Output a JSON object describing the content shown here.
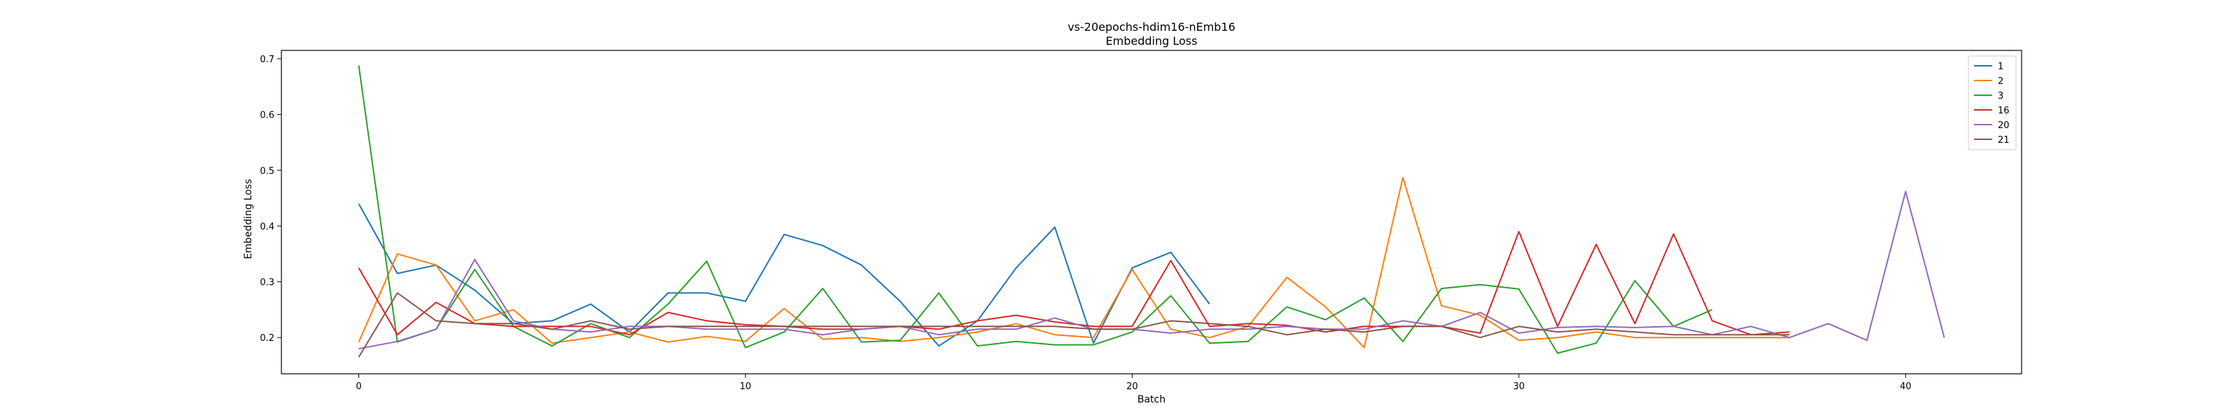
{
  "chart_data": {
    "type": "line",
    "title": "vs-20epochs-hdim16-nEmb16",
    "subtitle": "Embedding Loss",
    "xlabel": "Batch",
    "ylabel": "Embedding Loss",
    "xlim": [
      -2,
      43
    ],
    "ylim": [
      0.135,
      0.715
    ],
    "x_ticks": [
      0,
      10,
      20,
      30,
      40
    ],
    "y_ticks": [
      0.2,
      0.3,
      0.4,
      0.5,
      0.6,
      0.7
    ],
    "grid": false,
    "legend_position": "top-right",
    "series": [
      {
        "name": "1",
        "color": "#1f77b4",
        "values": [
          0.44,
          0.315,
          0.33,
          0.285,
          0.225,
          0.23,
          0.26,
          0.21,
          0.28,
          0.28,
          0.265,
          0.385,
          0.365,
          0.33,
          0.265,
          0.185,
          0.23,
          0.325,
          0.398,
          0.19,
          0.325,
          0.353,
          0.26
        ]
      },
      {
        "name": "2",
        "color": "#ff7f0e",
        "values": [
          0.192,
          0.35,
          0.33,
          0.23,
          0.25,
          0.19,
          0.2,
          0.21,
          0.192,
          0.202,
          0.193,
          0.252,
          0.197,
          0.2,
          0.193,
          0.2,
          0.21,
          0.225,
          0.205,
          0.2,
          0.322,
          0.215,
          0.2,
          0.22,
          0.308,
          0.255,
          0.182,
          0.487,
          0.257,
          0.24,
          0.195,
          0.2,
          0.21,
          0.2,
          0.2,
          0.2,
          0.2,
          0.2
        ]
      },
      {
        "name": "3",
        "color": "#2ca02c",
        "values": [
          0.688,
          0.192,
          0.215,
          0.322,
          0.22,
          0.185,
          0.225,
          0.2,
          0.26,
          0.337,
          0.182,
          0.21,
          0.288,
          0.192,
          0.195,
          0.28,
          0.185,
          0.193,
          0.187,
          0.187,
          0.21,
          0.275,
          0.19,
          0.193,
          0.255,
          0.232,
          0.271,
          0.193,
          0.288,
          0.295,
          0.287,
          0.172,
          0.19,
          0.302,
          0.22,
          0.25
        ]
      },
      {
        "name": "16",
        "color": "#d62728",
        "values": [
          0.325,
          0.205,
          0.263,
          0.225,
          0.22,
          0.22,
          0.22,
          0.205,
          0.245,
          0.23,
          0.223,
          0.22,
          0.215,
          0.215,
          0.22,
          0.215,
          0.23,
          0.24,
          0.228,
          0.22,
          0.22,
          0.338,
          0.22,
          0.225,
          0.222,
          0.21,
          0.22,
          0.22,
          0.22,
          0.208,
          0.39,
          0.22,
          0.367,
          0.225,
          0.386,
          0.23,
          0.205,
          0.21
        ]
      },
      {
        "name": "20",
        "color": "#9467bd",
        "values": [
          0.18,
          0.193,
          0.215,
          0.34,
          0.23,
          0.215,
          0.21,
          0.22,
          0.22,
          0.215,
          0.215,
          0.215,
          0.205,
          0.215,
          0.22,
          0.205,
          0.215,
          0.215,
          0.235,
          0.215,
          0.215,
          0.208,
          0.215,
          0.215,
          0.22,
          0.215,
          0.215,
          0.23,
          0.22,
          0.245,
          0.208,
          0.218,
          0.22,
          0.218,
          0.22,
          0.205,
          0.22,
          0.2,
          0.225,
          0.195,
          0.462,
          0.2
        ]
      },
      {
        "name": "21",
        "color": "#8c564b",
        "values": [
          0.165,
          0.28,
          0.23,
          0.225,
          0.225,
          0.215,
          0.23,
          0.215,
          0.22,
          0.22,
          0.22,
          0.22,
          0.22,
          0.22,
          0.22,
          0.22,
          0.22,
          0.22,
          0.22,
          0.215,
          0.215,
          0.23,
          0.225,
          0.22,
          0.205,
          0.215,
          0.21,
          0.22,
          0.22,
          0.2,
          0.22,
          0.21,
          0.215,
          0.21,
          0.205,
          0.205,
          0.205,
          0.205
        ]
      }
    ]
  }
}
